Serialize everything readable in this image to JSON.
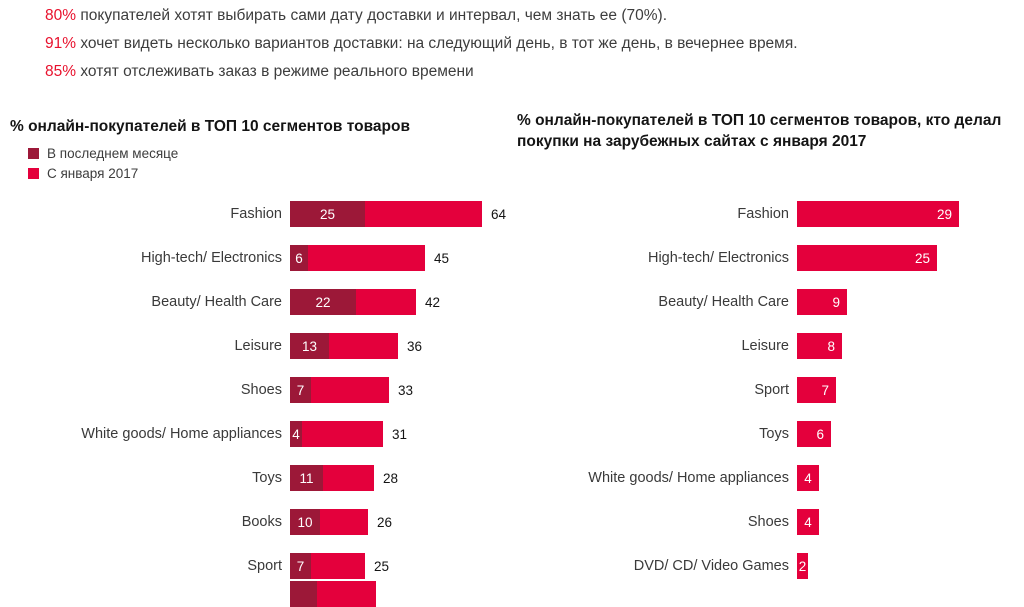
{
  "top_statements": [
    {
      "percent": "80%",
      "text": "покупателей хотят выбирать сами дату доставки и интервал, чем знать ее (70%)."
    },
    {
      "percent": "91%",
      "text": "хочет видеть несколько вариантов доставки: на следующий день, в тот же день, в вечернее время."
    },
    {
      "percent": "85%",
      "text": "хотят отслеживать заказ в режиме реального времени"
    }
  ],
  "chart_data": [
    {
      "type": "bar",
      "orientation": "horizontal",
      "title": "% онлайн-покупателей в ТОП 10 сегментов товаров",
      "legend_position": "top-left",
      "categories": [
        "Fashion",
        "High-tech/ Electronics",
        "Beauty/ Health Care",
        "Leisure",
        "Shoes",
        "White goods/ Home appliances",
        "Toys",
        "Books",
        "Sport"
      ],
      "series": [
        {
          "name": "В последнем месяце",
          "color": "#9c1838",
          "values": [
            25,
            6,
            22,
            13,
            7,
            4,
            11,
            10,
            7
          ]
        },
        {
          "name": "С января 2017",
          "color": "#e4003c",
          "values": [
            64,
            45,
            42,
            36,
            33,
            31,
            28,
            26,
            25
          ]
        }
      ],
      "xlim": [
        0,
        70
      ],
      "value_labels": true,
      "clipped_row_visible": true
    },
    {
      "type": "bar",
      "orientation": "horizontal",
      "title": "% онлайн-покупателей в ТОП 10 сегментов товаров, кто делал покупки на зарубежных сайтах с января 2017",
      "categories": [
        "Fashion",
        "High-tech/ Electronics",
        "Beauty/ Health Care",
        "Leisure",
        "Sport",
        "Toys",
        "White goods/ Home appliances",
        "Shoes",
        "DVD/ CD/ Video Games"
      ],
      "series": [
        {
          "name": "С января 2017",
          "color": "#e4003c",
          "values": [
            29,
            25,
            9,
            8,
            7,
            6,
            4,
            4,
            2
          ]
        }
      ],
      "xlim": [
        0,
        30
      ],
      "value_labels": true
    }
  ],
  "colors": {
    "bar_red": "#e4003c",
    "bar_dark_red": "#9c1838",
    "percent_red": "#e8112d"
  }
}
